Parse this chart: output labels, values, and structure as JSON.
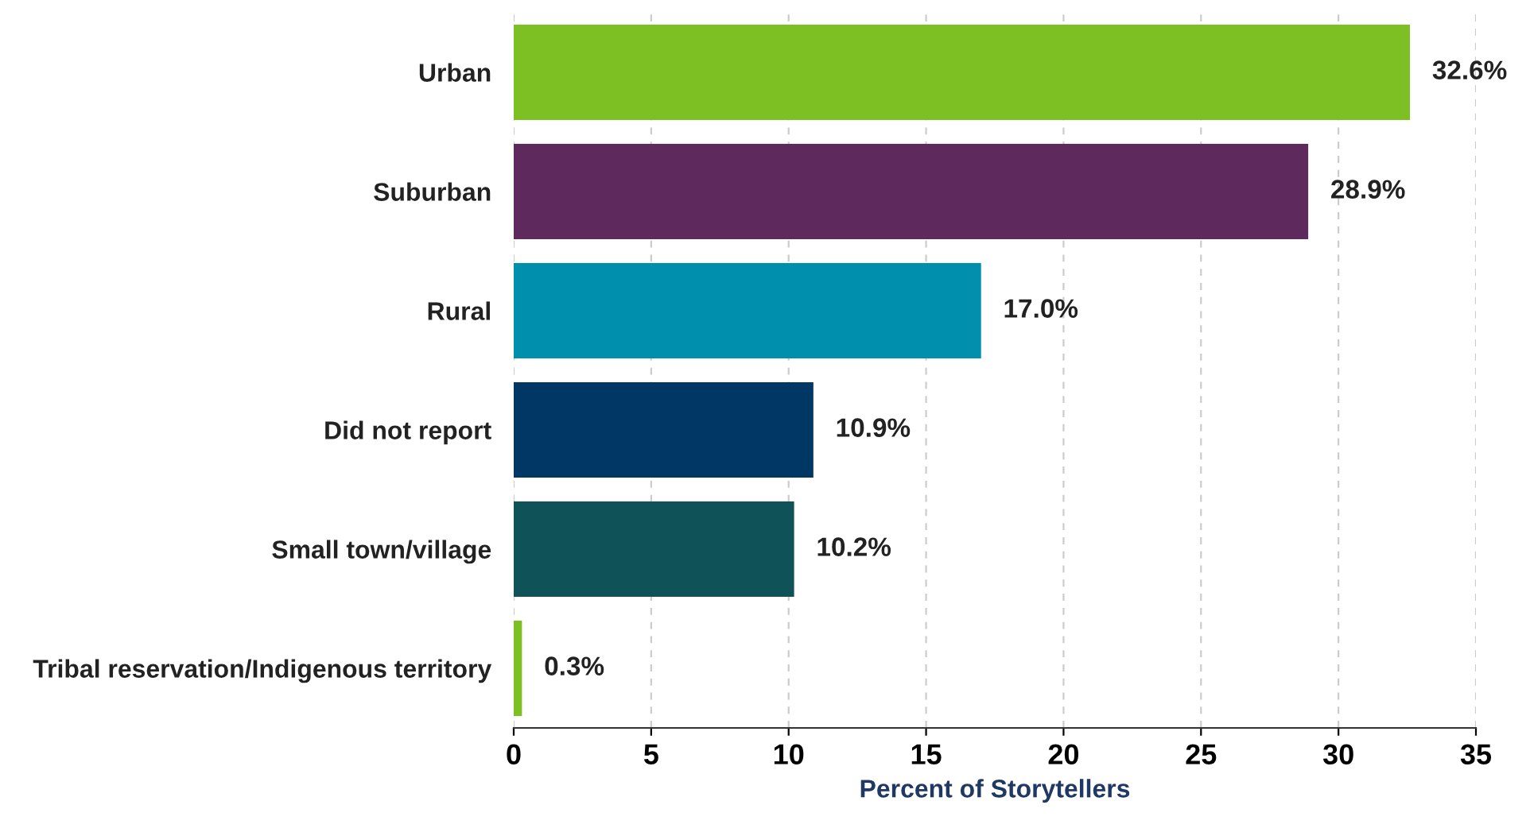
{
  "chart_data": {
    "type": "bar",
    "orientation": "horizontal",
    "xlabel": "Percent of Storytellers",
    "categories": [
      "Urban",
      "Suburban",
      "Rural",
      "Did not report",
      "Small town/village",
      "Tribal reservation/Indigenous territory"
    ],
    "values": [
      32.6,
      28.9,
      17.0,
      10.9,
      10.2,
      0.3
    ],
    "value_labels": [
      "32.6%",
      "28.9%",
      "17.0%",
      "10.9%",
      "10.2%",
      "0.3%"
    ],
    "colors": [
      "#7cc024",
      "#5e2a5e",
      "#0090ad",
      "#003764",
      "#0f5257",
      "#7cc024"
    ],
    "xlim": [
      0,
      35
    ],
    "xticks": [
      0,
      5,
      10,
      15,
      20,
      25,
      30,
      35
    ],
    "grid": "x"
  }
}
